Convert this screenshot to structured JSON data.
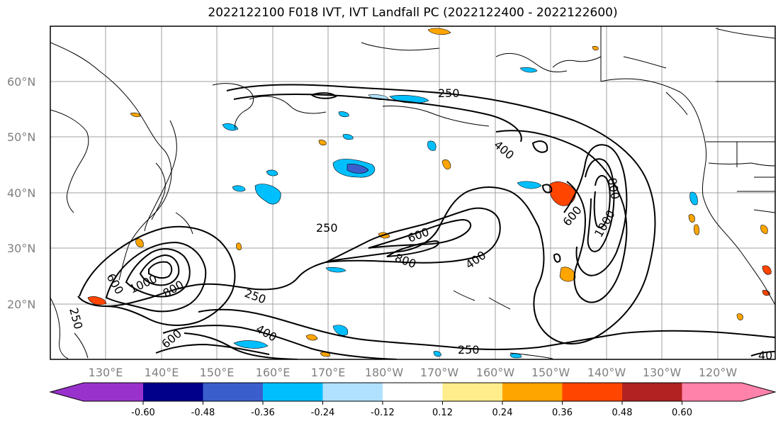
{
  "title": "2022122100 F018 IVT, IVT Landfall PC (2022122400 - 2022122600)",
  "lat_ticks": [
    "20°N",
    "30°N",
    "40°N",
    "50°N",
    "60°N"
  ],
  "lon_ticks": [
    "130°E",
    "140°E",
    "150°E",
    "160°E",
    "170°E",
    "180°W",
    "170°W",
    "160°W",
    "150°W",
    "140°W",
    "130°W",
    "120°W"
  ],
  "colorbar": {
    "tick_labels": [
      "-0.60",
      "-0.48",
      "-0.36",
      "-0.24",
      "-0.12",
      "0.12",
      "0.24",
      "0.36",
      "0.48",
      "0.60"
    ],
    "colors": [
      "#9932cc",
      "#00008b",
      "#3a5fcd",
      "#00bfff",
      "#b0e2ff",
      "#ffffff",
      "#ffec8b",
      "#ffa500",
      "#ff4500",
      "#b22222",
      "#ff82ab"
    ]
  },
  "contour_labels": [
    "250",
    "250",
    "250",
    "250",
    "400",
    "400",
    "400",
    "600",
    "600",
    "600",
    "600",
    "800",
    "800",
    "800",
    "1000",
    "1000",
    "250",
    "40"
  ]
}
